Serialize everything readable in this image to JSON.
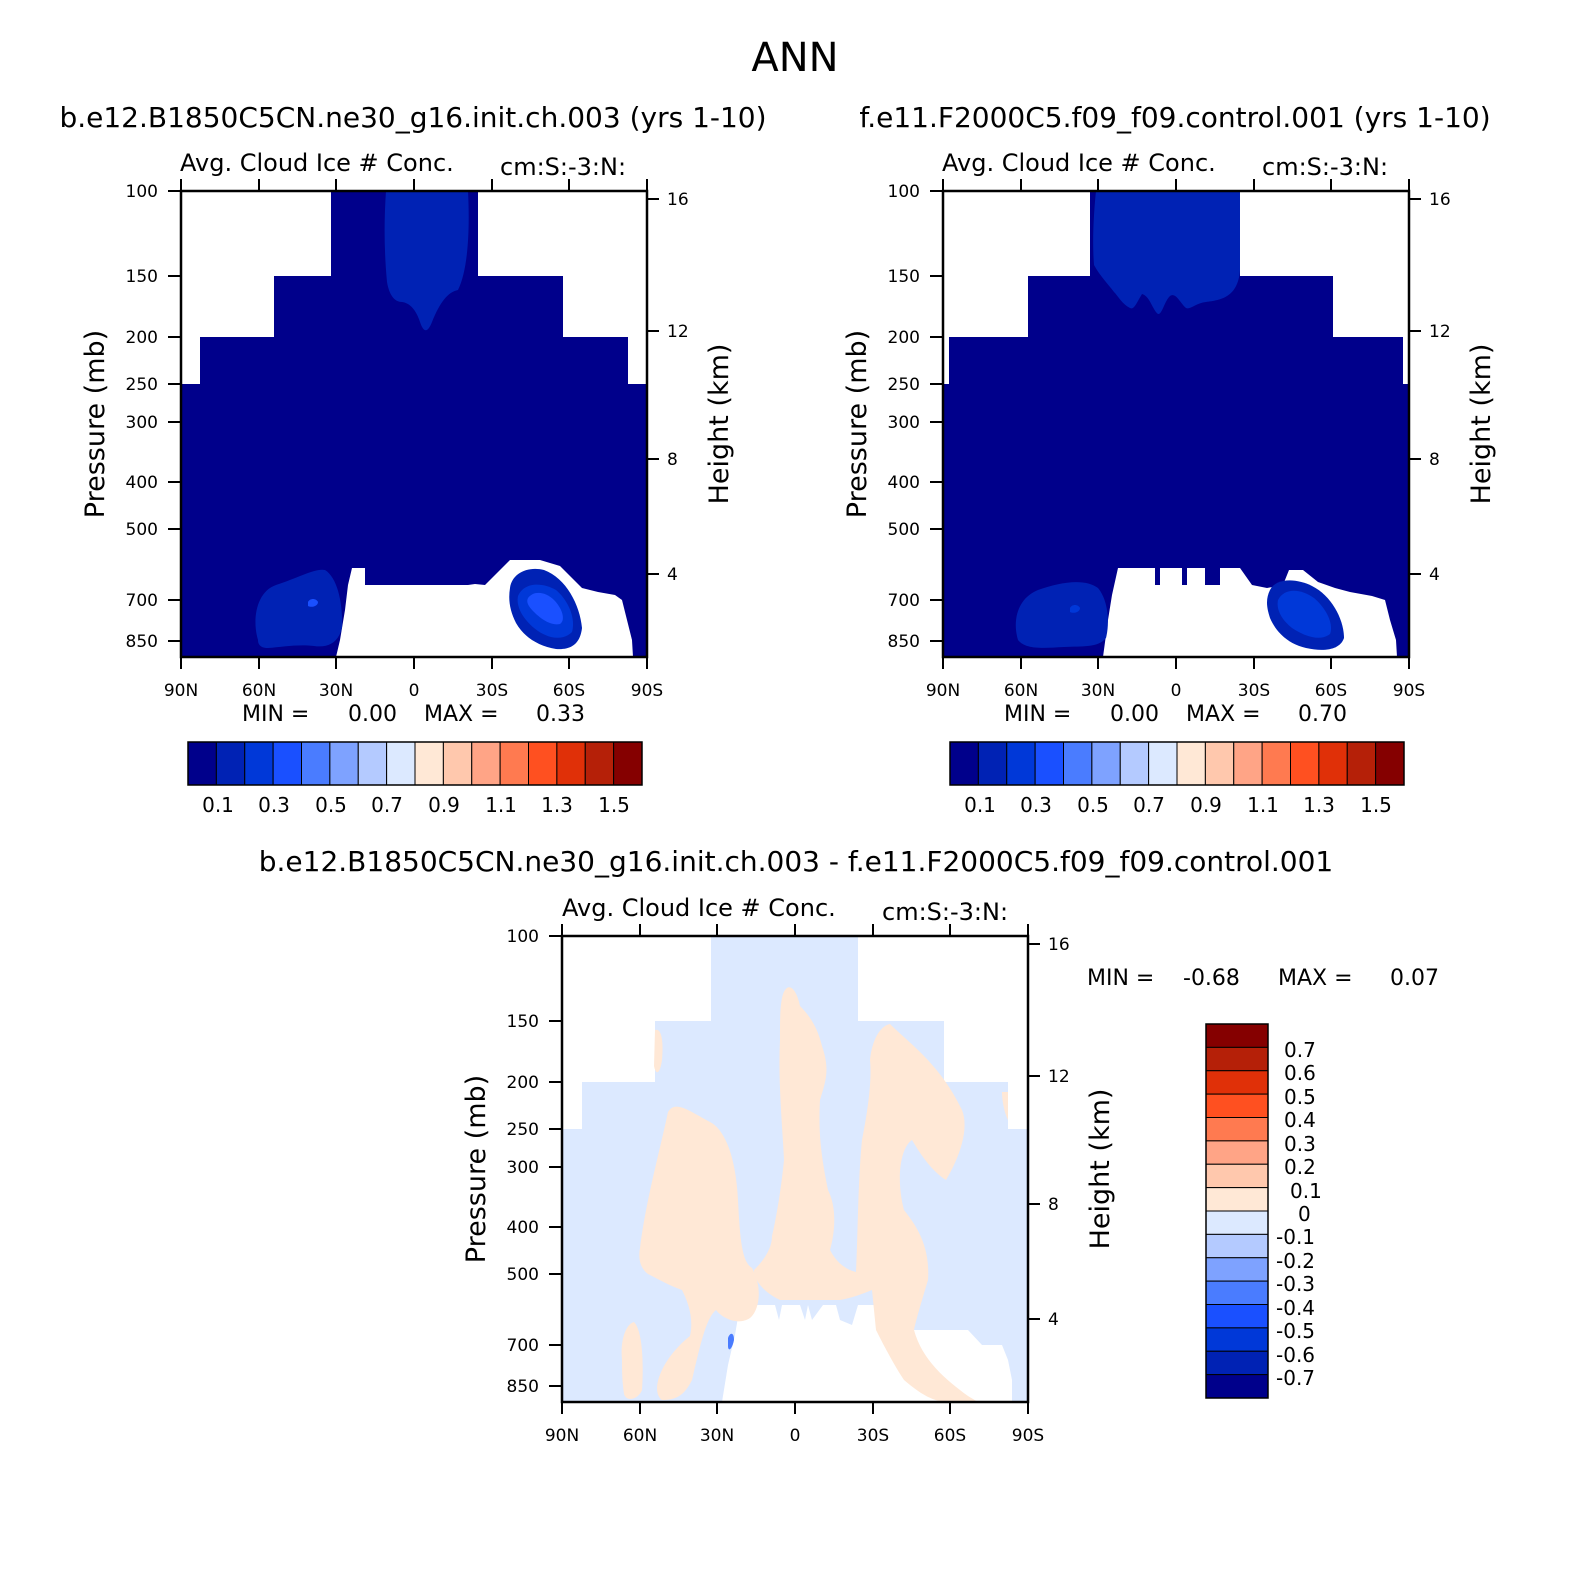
{
  "figure_title": "ANN",
  "chart_data": [
    {
      "type": "contour",
      "case_title": "b.e12.B1850C5CN.ne30_g16.init.ch.003 (yrs 1-10)",
      "long_name": "Avg. Cloud Ice # Conc.",
      "units": "cm:S:-3:N:",
      "xlabel": "",
      "ylabel": "Pressure (mb)",
      "ylabel_right": "Height (km)",
      "x_tick_labels": [
        "90N",
        "60N",
        "30N",
        "0",
        "30S",
        "60S",
        "90S"
      ],
      "x_range": [
        90,
        -90
      ],
      "y_tick_labels": [
        "100",
        "150",
        "200",
        "250",
        "300",
        "400",
        "500",
        "700",
        "850"
      ],
      "y_range_mb": [
        100,
        900
      ],
      "right_tick_labels": [
        "16",
        "12",
        "8",
        "4"
      ],
      "min_label": "MIN =",
      "min_value": "0.00",
      "max_label": "MAX =",
      "max_value": "0.33",
      "colorbar_labels": [
        "0.1",
        "0.3",
        "0.5",
        "0.7",
        "0.9",
        "1.1",
        "1.3",
        "1.5"
      ],
      "contour_levels": [
        0.1,
        0.2,
        0.3,
        0.4,
        0.5,
        0.6,
        0.7,
        0.8,
        0.9,
        1.0,
        1.1,
        1.2,
        1.3,
        1.4,
        1.5
      ],
      "colors": [
        "#00008b",
        "#0022b4",
        "#0038d8",
        "#1a50ff",
        "#4a7cff",
        "#7ea2ff",
        "#b4caff",
        "#dce9ff",
        "#ffe8d6",
        "#ffc8ad",
        "#ffa486",
        "#ff7a50",
        "#ff5020",
        "#e03008",
        "#b52008",
        "#850000"
      ]
    },
    {
      "type": "contour",
      "case_title": "f.e11.F2000C5.f09_f09.control.001 (yrs 1-10)",
      "long_name": "Avg. Cloud Ice # Conc.",
      "units": "cm:S:-3:N:",
      "xlabel": "",
      "ylabel": "Pressure (mb)",
      "ylabel_right": "Height (km)",
      "x_tick_labels": [
        "90N",
        "60N",
        "30N",
        "0",
        "30S",
        "60S",
        "90S"
      ],
      "x_range": [
        90,
        -90
      ],
      "y_tick_labels": [
        "100",
        "150",
        "200",
        "250",
        "300",
        "400",
        "500",
        "700",
        "850"
      ],
      "y_range_mb": [
        100,
        900
      ],
      "right_tick_labels": [
        "16",
        "12",
        "8",
        "4"
      ],
      "min_label": "MIN =",
      "min_value": "0.00",
      "max_label": "MAX =",
      "max_value": "0.70",
      "colorbar_labels": [
        "0.1",
        "0.3",
        "0.5",
        "0.7",
        "0.9",
        "1.1",
        "1.3",
        "1.5"
      ],
      "contour_levels": [
        0.1,
        0.2,
        0.3,
        0.4,
        0.5,
        0.6,
        0.7,
        0.8,
        0.9,
        1.0,
        1.1,
        1.2,
        1.3,
        1.4,
        1.5
      ],
      "colors": [
        "#00008b",
        "#0022b4",
        "#0038d8",
        "#1a50ff",
        "#4a7cff",
        "#7ea2ff",
        "#b4caff",
        "#dce9ff",
        "#ffe8d6",
        "#ffc8ad",
        "#ffa486",
        "#ff7a50",
        "#ff5020",
        "#e03008",
        "#b52008",
        "#850000"
      ]
    },
    {
      "type": "contour",
      "case_title": "b.e12.B1850C5CN.ne30_g16.init.ch.003 - f.e11.F2000C5.f09_f09.control.001",
      "long_name": "Avg. Cloud Ice # Conc.",
      "units": "cm:S:-3:N:",
      "xlabel": "",
      "ylabel": "Pressure (mb)",
      "ylabel_right": "Height (km)",
      "x_tick_labels": [
        "90N",
        "60N",
        "30N",
        "0",
        "30S",
        "60S",
        "90S"
      ],
      "x_range": [
        90,
        -90
      ],
      "y_tick_labels": [
        "100",
        "150",
        "200",
        "250",
        "300",
        "400",
        "500",
        "700",
        "850"
      ],
      "y_range_mb": [
        100,
        900
      ],
      "right_tick_labels": [
        "16",
        "12",
        "8",
        "4"
      ],
      "min_label": "MIN =",
      "min_value": "-0.68",
      "max_label": "MAX =",
      "max_value": "0.07",
      "colorbar_labels": [
        "0.7",
        "0.6",
        "0.5",
        "0.4",
        "0.3",
        "0.2",
        "0.1",
        "0",
        "-0.1",
        "-0.2",
        "-0.3",
        "-0.4",
        "-0.5",
        "-0.6",
        "-0.7"
      ],
      "contour_levels": [
        -0.7,
        -0.6,
        -0.5,
        -0.4,
        -0.3,
        -0.2,
        -0.1,
        0,
        0.1,
        0.2,
        0.3,
        0.4,
        0.5,
        0.6,
        0.7
      ],
      "colors": [
        "#850000",
        "#b52008",
        "#e03008",
        "#ff5020",
        "#ff7a50",
        "#ffa486",
        "#ffc8ad",
        "#ffe8d6",
        "#dce9ff",
        "#b4caff",
        "#7ea2ff",
        "#4a7cff",
        "#1a50ff",
        "#0038d8",
        "#0022b4",
        "#00008b"
      ]
    }
  ]
}
